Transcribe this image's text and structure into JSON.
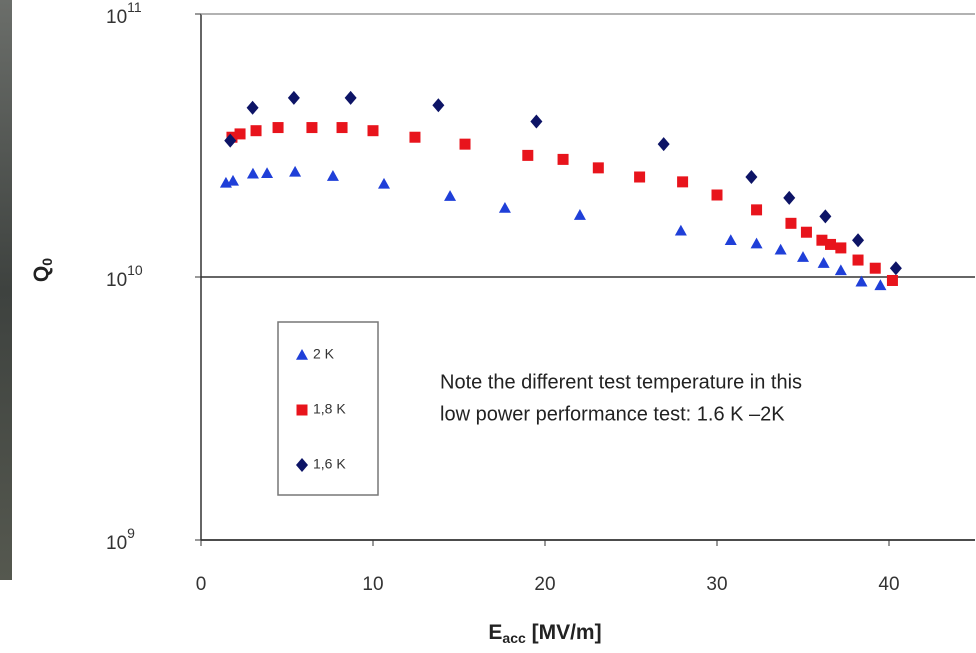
{
  "chart_data": {
    "type": "scatter",
    "xlabel": {
      "text": "E",
      "subscript": "acc",
      "suffix": " [MV/m]"
    },
    "ylabel": {
      "text": "Q",
      "subscript": "0"
    },
    "annotation": [
      "Note the different test temperature in this",
      "low power performance test: 1.6 K –2K"
    ],
    "xlim": [
      0,
      45
    ],
    "xticks": [
      0,
      10,
      20,
      30,
      40
    ],
    "ylim": [
      1000000000,
      100000000000
    ],
    "yticks": [
      {
        "value": 1000000000,
        "label": "10",
        "exponent": "9"
      },
      {
        "value": 10000000000,
        "label": "10",
        "exponent": "10"
      },
      {
        "value": 100000000000,
        "label": "10",
        "exponent": "11"
      }
    ],
    "log_y": true,
    "grid": true,
    "legend": "center-left",
    "series": [
      {
        "name": "2 K",
        "color": "#1f3fd8",
        "marker": "triangle",
        "x": [
          1.45,
          1.86,
          3.02,
          3.84,
          5.47,
          7.67,
          10.64,
          14.48,
          17.67,
          22.03,
          27.9,
          30.8,
          32.3,
          33.7,
          35.0,
          36.2,
          37.2,
          38.4,
          39.5
        ],
        "values": [
          22800000000,
          23200000000,
          24700000000,
          24800000000,
          25100000000,
          24200000000,
          22600000000,
          20300000000,
          18300000000,
          17200000000,
          15000000000,
          13800000000,
          13400000000,
          12700000000,
          11900000000,
          11300000000,
          10600000000,
          9600000000,
          9300000000
        ]
      },
      {
        "name": "1,8 K",
        "color": "#e8141c",
        "marker": "square",
        "x": [
          1.8,
          2.27,
          3.2,
          4.48,
          6.45,
          8.2,
          10.0,
          12.44,
          15.35,
          19.0,
          21.05,
          23.1,
          25.5,
          28.0,
          30.0,
          32.3,
          34.3,
          35.2,
          36.1,
          36.6,
          37.2,
          38.2,
          39.2,
          40.2
        ],
        "values": [
          34000000000,
          35000000000,
          36000000000,
          37000000000,
          37000000000,
          37000000000,
          36000000000,
          34000000000,
          32000000000,
          29000000000,
          28000000000,
          26000000000,
          24000000000,
          23000000000,
          20500000000,
          18000000000,
          16000000000,
          14800000000,
          13800000000,
          13300000000,
          12900000000,
          11600000000,
          10800000000,
          9700000000
        ]
      },
      {
        "name": "1,6 K",
        "color": "#0d1466",
        "marker": "diamond",
        "x": [
          1.7,
          3.0,
          5.4,
          8.7,
          13.8,
          19.5,
          26.9,
          32.0,
          34.2,
          36.3,
          38.2,
          40.4
        ],
        "values": [
          33000000000,
          44000000000,
          48000000000,
          48000000000,
          45000000000,
          39000000000,
          32000000000,
          24000000000,
          20000000000,
          17000000000,
          13800000000,
          10800000000
        ]
      }
    ]
  }
}
